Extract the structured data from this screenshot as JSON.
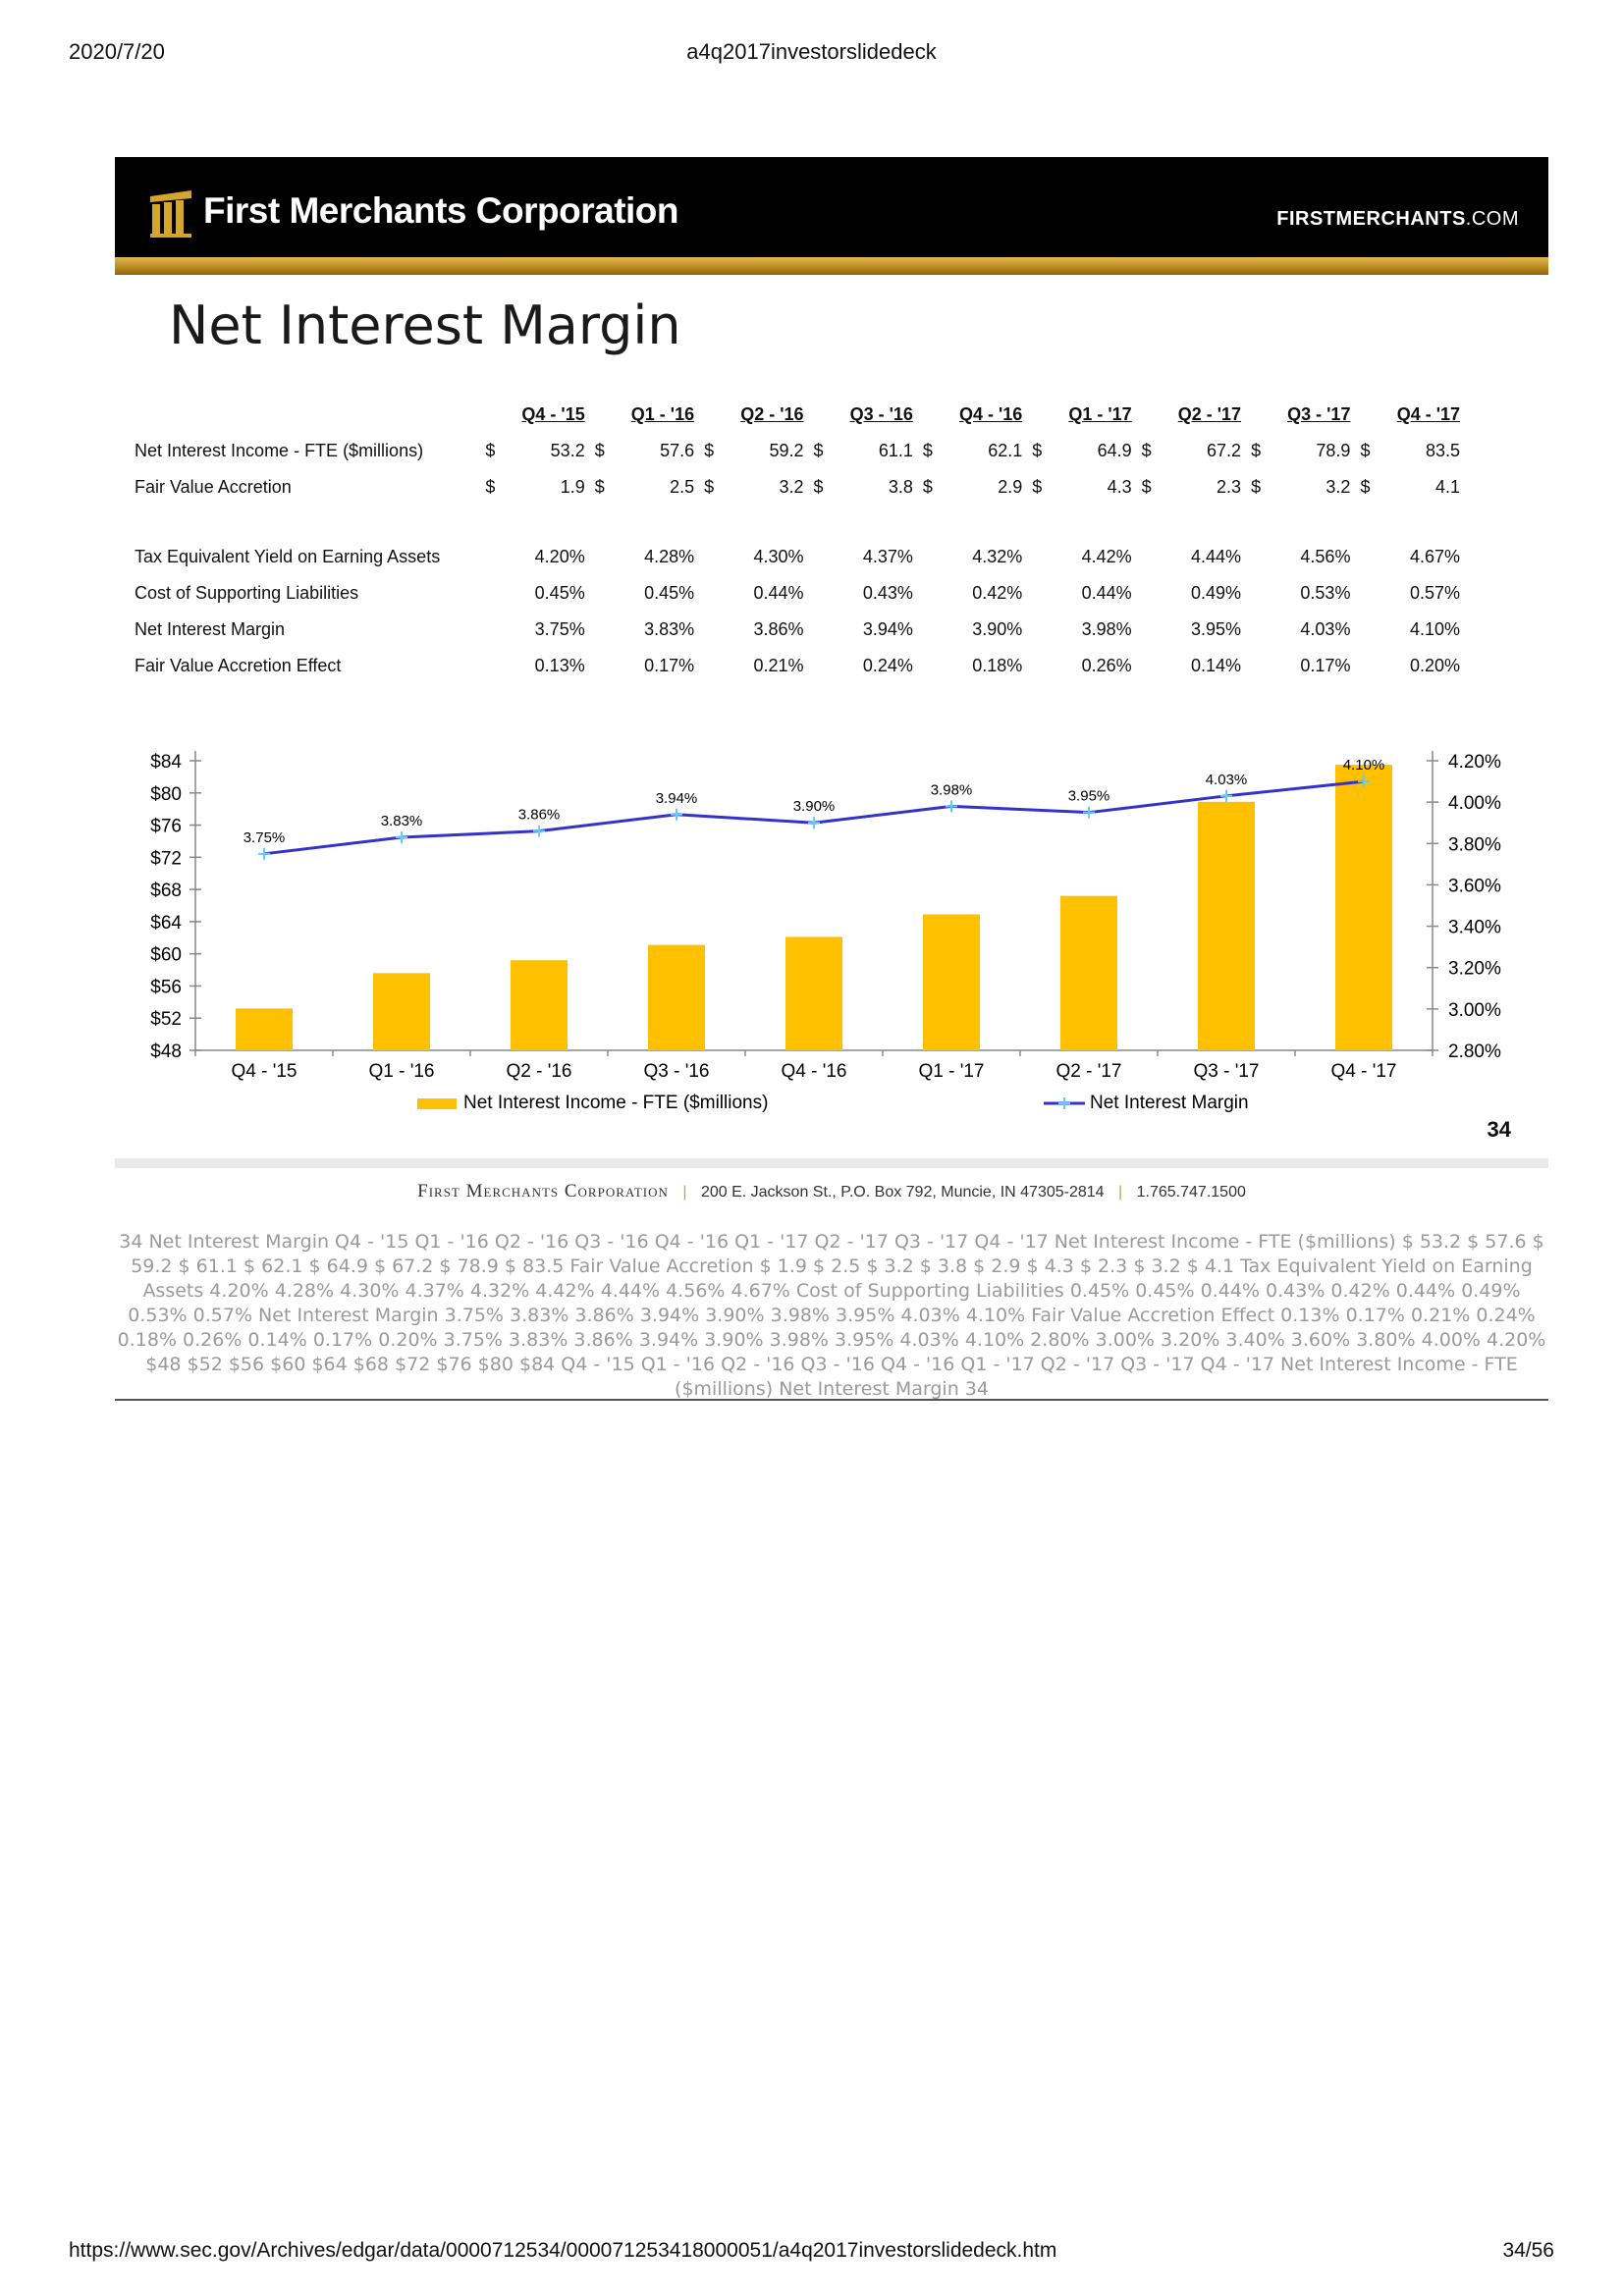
{
  "print_header": {
    "date": "2020/7/20",
    "doc_name": "a4q2017investorslidedeck"
  },
  "banner": {
    "company": "First Merchants Corporation",
    "site_main": "FIRSTMERCHANTS",
    "site_suffix": ".COM"
  },
  "slide": {
    "title": "Net Interest Margin",
    "page_number": "34"
  },
  "table": {
    "periods": [
      "Q4 - '15",
      "Q1 - '16",
      "Q2 - '16",
      "Q3 - '16",
      "Q4 - '16",
      "Q1 - '17",
      "Q2 - '17",
      "Q3 - '17",
      "Q4 - '17"
    ],
    "dollar_rows": [
      {
        "label": "Net Interest Income - FTE ($millions)",
        "values": [
          "53.2",
          "57.6",
          "59.2",
          "61.1",
          "62.1",
          "64.9",
          "67.2",
          "78.9",
          "83.5"
        ]
      },
      {
        "label": "Fair Value Accretion",
        "values": [
          "1.9",
          "2.5",
          "3.2",
          "3.8",
          "2.9",
          "4.3",
          "2.3",
          "3.2",
          "4.1"
        ]
      }
    ],
    "pct_rows": [
      {
        "label": "Tax Equivalent Yield on Earning Assets",
        "values": [
          "4.20%",
          "4.28%",
          "4.30%",
          "4.37%",
          "4.32%",
          "4.42%",
          "4.44%",
          "4.56%",
          "4.67%"
        ]
      },
      {
        "label": "Cost of Supporting Liabilities",
        "values": [
          "0.45%",
          "0.45%",
          "0.44%",
          "0.43%",
          "0.42%",
          "0.44%",
          "0.49%",
          "0.53%",
          "0.57%"
        ]
      },
      {
        "label": "Net Interest Margin",
        "values": [
          "3.75%",
          "3.83%",
          "3.86%",
          "3.94%",
          "3.90%",
          "3.98%",
          "3.95%",
          "4.03%",
          "4.10%"
        ]
      },
      {
        "label": "Fair Value Accretion Effect",
        "values": [
          "0.13%",
          "0.17%",
          "0.21%",
          "0.24%",
          "0.18%",
          "0.26%",
          "0.14%",
          "0.17%",
          "0.20%"
        ]
      }
    ],
    "dollar_sign": "$"
  },
  "chart_data": {
    "type": "bar",
    "categories": [
      "Q4 - '15",
      "Q1 - '16",
      "Q2 - '16",
      "Q3 - '16",
      "Q4 - '16",
      "Q1 - '17",
      "Q2 - '17",
      "Q3 - '17",
      "Q4 - '17"
    ],
    "series": [
      {
        "name": "Net Interest Income - FTE ($millions)",
        "type": "bar",
        "axis": "left",
        "color": "#FFC000",
        "values": [
          53.2,
          57.6,
          59.2,
          61.1,
          62.1,
          64.9,
          67.2,
          78.9,
          83.5
        ]
      },
      {
        "name": "Net Interest Margin",
        "type": "line",
        "axis": "right",
        "color": "#3333CC",
        "values": [
          3.75,
          3.83,
          3.86,
          3.94,
          3.9,
          3.98,
          3.95,
          4.03,
          4.1
        ],
        "labels": [
          "3.75%",
          "3.83%",
          "3.86%",
          "3.94%",
          "3.90%",
          "3.98%",
          "3.95%",
          "4.03%",
          "4.10%"
        ]
      }
    ],
    "y_left": {
      "min": 48,
      "max": 84,
      "ticks": [
        "$48",
        "$52",
        "$56",
        "$60",
        "$64",
        "$68",
        "$72",
        "$76",
        "$80",
        "$84"
      ],
      "tick_values": [
        48,
        52,
        56,
        60,
        64,
        68,
        72,
        76,
        80,
        84
      ]
    },
    "y_right": {
      "min": 2.8,
      "max": 4.2,
      "ticks": [
        "2.80%",
        "3.00%",
        "3.20%",
        "3.40%",
        "3.60%",
        "3.80%",
        "4.00%",
        "4.20%"
      ],
      "tick_values": [
        2.8,
        3.0,
        3.2,
        3.4,
        3.6,
        3.8,
        4.0,
        4.2
      ]
    },
    "legend_position": "bottom",
    "grid": false
  },
  "footer": {
    "corp": "First Merchants Corporation",
    "address": "200 E. Jackson St., P.O. Box 792, Muncie, IN 47305-2814",
    "phone": "1.765.747.1500"
  },
  "ocr_text": "34  Net Interest Margin  Q4 - '15 Q1 - '16 Q2 - '16 Q3 - '16 Q4 - '16 Q1 - '17 Q2 - '17 Q3 - '17 Q4 - '17  Net Interest Income - FTE ($millions) $ 53.2 $ 57.6 $ 59.2 $ 61.1 $ 62.1 $ 64.9 $ 67.2 $ 78.9 $ 83.5  Fair Value Accretion $ 1.9 $ 2.5 $ 3.2 $ 3.8 $ 2.9 $ 4.3 $ 2.3 $ 3.2 $ 4.1  Tax Equivalent Yield on Earning Assets 4.20% 4.28% 4.30% 4.37% 4.32% 4.42% 4.44% 4.56% 4.67%  Cost of Supporting Liabilities 0.45% 0.45% 0.44% 0.43% 0.42% 0.44% 0.49% 0.53% 0.57%  Net Interest Margin 3.75% 3.83% 3.86% 3.94% 3.90% 3.98% 3.95% 4.03% 4.10%  Fair Value Accretion Effect 0.13% 0.17% 0.21% 0.24% 0.18% 0.26% 0.14% 0.17% 0.20%  3.75%  3.83% 3.86% 3.94%  3.90%  3.98%  3.95%  4.03%  4.10%  2.80% 3.00% 3.20% 3.40% 3.60% 3.80% 4.00% 4.20% $48 $52 $56 $60 $64 $68 $72 $76 $80 $84 Q4 - '15 Q1 - '16 Q2 - '16 Q3 - '16 Q4 - '16 Q1 - '17 Q2 - '17 Q3 - '17 Q4 - '17 Net Interest Income - FTE ($millions) Net Interest Margin 34",
  "print_footer": {
    "url": "https://www.sec.gov/Archives/edgar/data/0000712534/000071253418000051/a4q2017investorslidedeck.htm",
    "page": "34/56"
  }
}
